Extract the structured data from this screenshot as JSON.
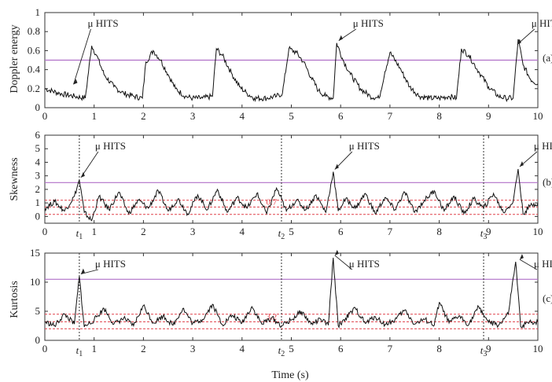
{
  "chart_data": [
    {
      "type": "line",
      "panel_label": "(a)",
      "ylabel": "Doppler energy",
      "xlabel": "",
      "xlim": [
        0,
        10
      ],
      "ylim": [
        0,
        1
      ],
      "xticks": [
        "0",
        "1",
        "2",
        "3",
        "4",
        "5",
        "6",
        "7",
        "8",
        "9",
        "10"
      ],
      "yticks": [
        "0",
        "0.2",
        "0.4",
        "0.6",
        "0.8",
        "1"
      ],
      "threshold": 0.5,
      "threshold_color": "#b070c8",
      "dashed_lines": [],
      "annotations": [
        {
          "text": "μ HITS",
          "x": 0.55,
          "y": 0.22
        },
        {
          "text": "μ HITS",
          "x": 5.93,
          "y": 0.68
        },
        {
          "text": "μ HITS",
          "x": 9.55,
          "y": 0.64
        }
      ],
      "time_markers": [],
      "series": [
        {
          "name": "",
          "color": "#111111",
          "x": [
            0,
            0.3,
            0.6,
            0.82,
            0.95,
            1.05,
            1.2,
            1.4,
            1.6,
            1.8,
            1.98,
            2.05,
            2.2,
            2.35,
            2.5,
            2.65,
            2.85,
            3.0,
            3.2,
            3.4,
            3.48,
            3.6,
            3.8,
            3.95,
            4.1,
            4.25,
            4.5,
            4.7,
            4.82,
            4.95,
            5.1,
            5.25,
            5.4,
            5.55,
            5.7,
            5.85,
            5.92,
            6.05,
            6.2,
            6.4,
            6.6,
            6.78,
            6.9,
            7.0,
            7.2,
            7.4,
            7.6,
            7.8,
            8.0,
            8.2,
            8.35,
            8.45,
            8.6,
            8.8,
            9.0,
            9.2,
            9.35,
            9.5,
            9.6,
            9.7,
            9.85,
            10
          ],
          "y": [
            0.2,
            0.15,
            0.12,
            0.1,
            0.65,
            0.55,
            0.35,
            0.22,
            0.15,
            0.12,
            0.1,
            0.48,
            0.6,
            0.5,
            0.35,
            0.2,
            0.12,
            0.1,
            0.1,
            0.12,
            0.62,
            0.55,
            0.35,
            0.22,
            0.15,
            0.1,
            0.1,
            0.12,
            0.15,
            0.62,
            0.58,
            0.48,
            0.32,
            0.18,
            0.12,
            0.1,
            0.68,
            0.5,
            0.35,
            0.2,
            0.12,
            0.1,
            0.38,
            0.58,
            0.42,
            0.22,
            0.12,
            0.1,
            0.1,
            0.12,
            0.1,
            0.62,
            0.55,
            0.38,
            0.22,
            0.12,
            0.1,
            0.1,
            0.72,
            0.45,
            0.3,
            0.25
          ]
        }
      ]
    },
    {
      "type": "line",
      "panel_label": "(b)",
      "ylabel": "Skewness",
      "xlabel": "",
      "xlim": [
        0,
        10
      ],
      "ylim": [
        -0.5,
        6
      ],
      "xticks": [
        "0",
        "t1 1",
        "2",
        "3",
        "4",
        "t2 5",
        "6",
        "7",
        "8",
        "t3 9",
        "10"
      ],
      "yticks": [
        "0",
        "1",
        "2",
        "3",
        "4",
        "5",
        "6"
      ],
      "threshold": 2.5,
      "threshold_color": "#b070c8",
      "dashed_lines": [
        1.2,
        0.7,
        0.15
      ],
      "dashed_label": "0.7",
      "annotations": [
        {
          "text": "μ HITS",
          "x": 0.7,
          "y": 2.7
        },
        {
          "text": "μ HITS",
          "x": 5.85,
          "y": 3.3
        },
        {
          "text": "μ HITS",
          "x": 9.6,
          "y": 3.5
        }
      ],
      "time_markers": [
        {
          "label": "t1",
          "x": 0.7
        },
        {
          "label": "t2",
          "x": 4.8
        },
        {
          "label": "t3",
          "x": 8.9
        }
      ],
      "series": [
        {
          "name": "",
          "color": "#111111",
          "x": [
            0,
            0.2,
            0.4,
            0.6,
            0.7,
            0.8,
            0.95,
            1.1,
            1.3,
            1.5,
            1.7,
            1.9,
            2.1,
            2.3,
            2.5,
            2.7,
            2.9,
            3.1,
            3.3,
            3.5,
            3.7,
            3.9,
            4.1,
            4.3,
            4.5,
            4.7,
            4.9,
            5.1,
            5.3,
            5.5,
            5.7,
            5.85,
            5.95,
            6.1,
            6.3,
            6.5,
            6.7,
            6.9,
            7.1,
            7.3,
            7.5,
            7.7,
            7.9,
            8.1,
            8.3,
            8.5,
            8.7,
            8.9,
            9.1,
            9.3,
            9.5,
            9.6,
            9.7,
            9.85,
            10
          ],
          "y": [
            0.6,
            1.1,
            0.4,
            1.5,
            2.7,
            0.3,
            -0.3,
            1.5,
            0.5,
            1.8,
            0.2,
            1.2,
            0.6,
            1.9,
            0.4,
            1.3,
            0.2,
            1.6,
            0.5,
            2.0,
            0.3,
            1.4,
            0.6,
            1.7,
            0.2,
            2.1,
            0.4,
            1.2,
            0.5,
            1.6,
            0.3,
            3.3,
            0.4,
            1.3,
            0.6,
            1.7,
            0.2,
            1.4,
            0.5,
            1.8,
            0.3,
            1.2,
            1.9,
            0.4,
            1.5,
            0.2,
            1.3,
            0.6,
            1.7,
            0.3,
            1.1,
            3.5,
            0.2,
            0.8,
            1.0
          ]
        }
      ]
    },
    {
      "type": "line",
      "panel_label": "(c)",
      "ylabel": "Kurtosis",
      "xlabel": "Time (s)",
      "xlim": [
        0,
        10
      ],
      "ylim": [
        0,
        15
      ],
      "xticks": [
        "0",
        "t1 1",
        "2",
        "3",
        "4",
        "t2 5",
        "6",
        "7",
        "8",
        "t3 9",
        "10"
      ],
      "yticks": [
        "0",
        "5",
        "10",
        "15"
      ],
      "threshold": 10.5,
      "threshold_color": "#b070c8",
      "dashed_lines": [
        4.5,
        3.2,
        2.0
      ],
      "dashed_label": "3.2",
      "annotations": [
        {
          "text": "μ HITS",
          "x": 0.7,
          "y": 11
        },
        {
          "text": "μ HITS",
          "x": 5.85,
          "y": 14.2
        },
        {
          "text": "μ HITS",
          "x": 9.6,
          "y": 13.5
        }
      ],
      "time_markers": [
        {
          "label": "t1",
          "x": 0.7
        },
        {
          "label": "t2",
          "x": 4.8
        },
        {
          "label": "t3",
          "x": 8.9
        }
      ],
      "series": [
        {
          "name": "",
          "color": "#111111",
          "x": [
            0,
            0.2,
            0.4,
            0.6,
            0.7,
            0.8,
            1.0,
            1.2,
            1.4,
            1.6,
            1.8,
            2.0,
            2.2,
            2.4,
            2.6,
            2.8,
            3.0,
            3.2,
            3.4,
            3.6,
            3.8,
            4.0,
            4.2,
            4.4,
            4.6,
            4.8,
            5.0,
            5.2,
            5.4,
            5.6,
            5.75,
            5.85,
            5.95,
            6.1,
            6.3,
            6.5,
            6.7,
            6.9,
            7.1,
            7.3,
            7.5,
            7.7,
            7.9,
            8.0,
            8.2,
            8.4,
            8.6,
            8.8,
            9.0,
            9.2,
            9.4,
            9.55,
            9.65,
            9.8,
            10
          ],
          "y": [
            3.2,
            2.5,
            4.5,
            2.8,
            11.0,
            2.3,
            3.5,
            5.5,
            2.8,
            3.8,
            2.5,
            6.0,
            3.0,
            4.2,
            2.6,
            5.5,
            2.9,
            3.6,
            6.2,
            2.7,
            4.3,
            3.0,
            5.8,
            2.8,
            3.9,
            2.5,
            3.5,
            5.0,
            2.8,
            3.6,
            2.6,
            14.2,
            2.5,
            3.8,
            5.5,
            2.9,
            4.1,
            2.7,
            3.5,
            5.2,
            2.8,
            3.6,
            2.6,
            6.5,
            3.0,
            4.2,
            2.7,
            5.8,
            3.1,
            2.6,
            4.5,
            13.5,
            2.4,
            3.0,
            3.2
          ]
        }
      ]
    }
  ],
  "xlabel_bottom": "Time (s)"
}
